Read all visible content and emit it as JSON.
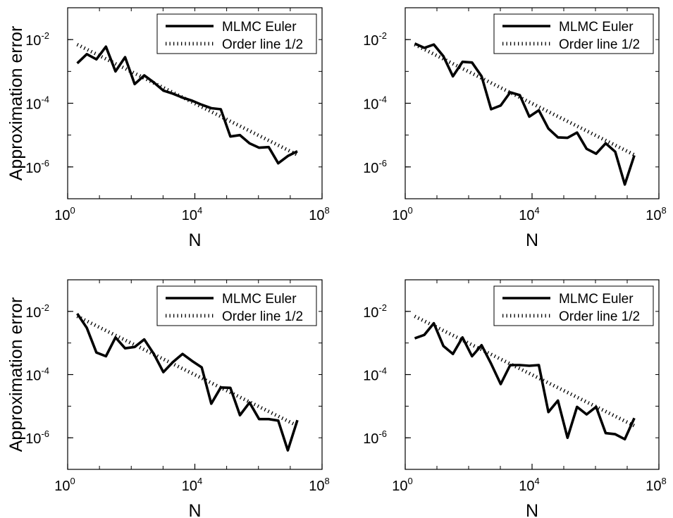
{
  "figure": {
    "xlabel": "N",
    "ylabel": "Approximation error",
    "legend": [
      "MLMC Euler",
      "Order line 1/2"
    ]
  },
  "chart_data": [
    {
      "type": "line",
      "xscale": "log",
      "yscale": "log",
      "xlim": [
        1,
        100000000
      ],
      "ylim": [
        1e-07,
        0.1
      ],
      "xticks": [
        {
          "base": "10",
          "exp": "0"
        },
        {
          "base": "10",
          "exp": "4"
        },
        {
          "base": "10",
          "exp": "8"
        }
      ],
      "yticks": [
        {
          "base": "10",
          "exp": "-6"
        },
        {
          "base": "10",
          "exp": "-4"
        },
        {
          "base": "10",
          "exp": "-2"
        }
      ],
      "xlabel": "N",
      "ylabel": "Approximation error",
      "legend_position": "top-right",
      "grid": false,
      "series": [
        {
          "name": "MLMC Euler",
          "style": "solid",
          "x": [
            2,
            4,
            8,
            16,
            32,
            64,
            128,
            256,
            512,
            1024,
            2048,
            4096,
            8192,
            16384,
            32768,
            65536,
            131072,
            262144,
            524288,
            1048576,
            2097152,
            4194304,
            8388608,
            16777216
          ],
          "y": [
            0.0018,
            0.0035,
            0.0024,
            0.006,
            0.001,
            0.0028,
            0.0004,
            0.00075,
            0.00045,
            0.00025,
            0.0002,
            0.00015,
            0.00012,
            9e-05,
            7e-05,
            6.5e-05,
            9e-06,
            1e-05,
            5.5e-06,
            4e-06,
            4.2e-06,
            1.3e-06,
            2.2e-06,
            3.1e-06
          ]
        },
        {
          "name": "Order line 1/2",
          "style": "dotted",
          "x": [
            2,
            16777216
          ],
          "y": [
            0.007,
            2.4e-06
          ]
        }
      ]
    },
    {
      "type": "line",
      "xscale": "log",
      "yscale": "log",
      "xlim": [
        1,
        100000000
      ],
      "ylim": [
        1e-07,
        0.1
      ],
      "xticks": [
        {
          "base": "10",
          "exp": "0"
        },
        {
          "base": "10",
          "exp": "4"
        },
        {
          "base": "10",
          "exp": "8"
        }
      ],
      "yticks": [
        {
          "base": "10",
          "exp": "-6"
        },
        {
          "base": "10",
          "exp": "-4"
        },
        {
          "base": "10",
          "exp": "-2"
        }
      ],
      "xlabel": "N",
      "ylabel": "",
      "legend_position": "top-right",
      "grid": false,
      "series": [
        {
          "name": "MLMC Euler",
          "style": "solid",
          "x": [
            2,
            4,
            8,
            16,
            32,
            64,
            128,
            256,
            512,
            1024,
            2048,
            4096,
            8192,
            16384,
            32768,
            65536,
            131072,
            262144,
            524288,
            1048576,
            2097152,
            4194304,
            8388608,
            16777216
          ],
          "y": [
            0.0075,
            0.0055,
            0.007,
            0.003,
            0.0007,
            0.002,
            0.0019,
            0.0007,
            6.5e-05,
            8.5e-05,
            0.00022,
            0.00018,
            3.8e-05,
            6e-05,
            1.6e-05,
            8.5e-06,
            8.2e-06,
            1.2e-05,
            3.7e-06,
            2.6e-06,
            5.5e-06,
            3e-06,
            2.8e-07,
            2.3e-06
          ]
        },
        {
          "name": "Order line 1/2",
          "style": "dotted",
          "x": [
            2,
            16777216
          ],
          "y": [
            0.007,
            2.4e-06
          ]
        }
      ]
    },
    {
      "type": "line",
      "xscale": "log",
      "yscale": "log",
      "xlim": [
        1,
        100000000
      ],
      "ylim": [
        1e-07,
        0.1
      ],
      "xticks": [
        {
          "base": "10",
          "exp": "0"
        },
        {
          "base": "10",
          "exp": "4"
        },
        {
          "base": "10",
          "exp": "8"
        }
      ],
      "yticks": [
        {
          "base": "10",
          "exp": "-6"
        },
        {
          "base": "10",
          "exp": "-4"
        },
        {
          "base": "10",
          "exp": "-2"
        }
      ],
      "xlabel": "N",
      "ylabel": "Approximation error",
      "legend_position": "top-right",
      "grid": false,
      "series": [
        {
          "name": "MLMC Euler",
          "style": "solid",
          "x": [
            2,
            4,
            8,
            16,
            32,
            64,
            128,
            256,
            512,
            1024,
            2048,
            4096,
            8192,
            16384,
            32768,
            65536,
            131072,
            262144,
            524288,
            1048576,
            2097152,
            4194304,
            8388608,
            16777216
          ],
          "y": [
            0.0085,
            0.003,
            0.0005,
            0.00038,
            0.0015,
            0.00068,
            0.00075,
            0.0013,
            0.00045,
            0.00012,
            0.00025,
            0.00045,
            0.00027,
            0.00017,
            1.2e-05,
            3.9e-05,
            3.8e-05,
            5.2e-06,
            1.3e-05,
            3.9e-06,
            3.9e-06,
            3.5e-06,
            4e-07,
            3.6e-06
          ]
        },
        {
          "name": "Order line 1/2",
          "style": "dotted",
          "x": [
            2,
            16777216
          ],
          "y": [
            0.007,
            2.4e-06
          ]
        }
      ]
    },
    {
      "type": "line",
      "xscale": "log",
      "yscale": "log",
      "xlim": [
        1,
        100000000
      ],
      "ylim": [
        1e-07,
        0.1
      ],
      "xticks": [
        {
          "base": "10",
          "exp": "0"
        },
        {
          "base": "10",
          "exp": "4"
        },
        {
          "base": "10",
          "exp": "8"
        }
      ],
      "yticks": [
        {
          "base": "10",
          "exp": "-6"
        },
        {
          "base": "10",
          "exp": "-4"
        },
        {
          "base": "10",
          "exp": "-2"
        }
      ],
      "xlabel": "N",
      "ylabel": "",
      "legend_position": "top-right",
      "grid": false,
      "series": [
        {
          "name": "MLMC Euler",
          "style": "solid",
          "x": [
            2,
            4,
            8,
            16,
            32,
            64,
            128,
            256,
            512,
            1024,
            2048,
            4096,
            8192,
            16384,
            32768,
            65536,
            131072,
            262144,
            524288,
            1048576,
            2097152,
            4194304,
            8388608,
            16777216
          ],
          "y": [
            0.0014,
            0.0018,
            0.0042,
            0.0008,
            0.00045,
            0.0015,
            0.00038,
            0.00085,
            0.00022,
            5e-05,
            0.0002,
            0.0002,
            0.00019,
            0.0002,
            6.5e-06,
            1.5e-05,
            1e-06,
            9.5e-06,
            5.5e-06,
            9.5e-06,
            1.4e-06,
            1.3e-06,
            9e-07,
            4.2e-06
          ]
        },
        {
          "name": "Order line 1/2",
          "style": "dotted",
          "x": [
            2,
            16777216
          ],
          "y": [
            0.007,
            2.4e-06
          ]
        }
      ]
    }
  ]
}
